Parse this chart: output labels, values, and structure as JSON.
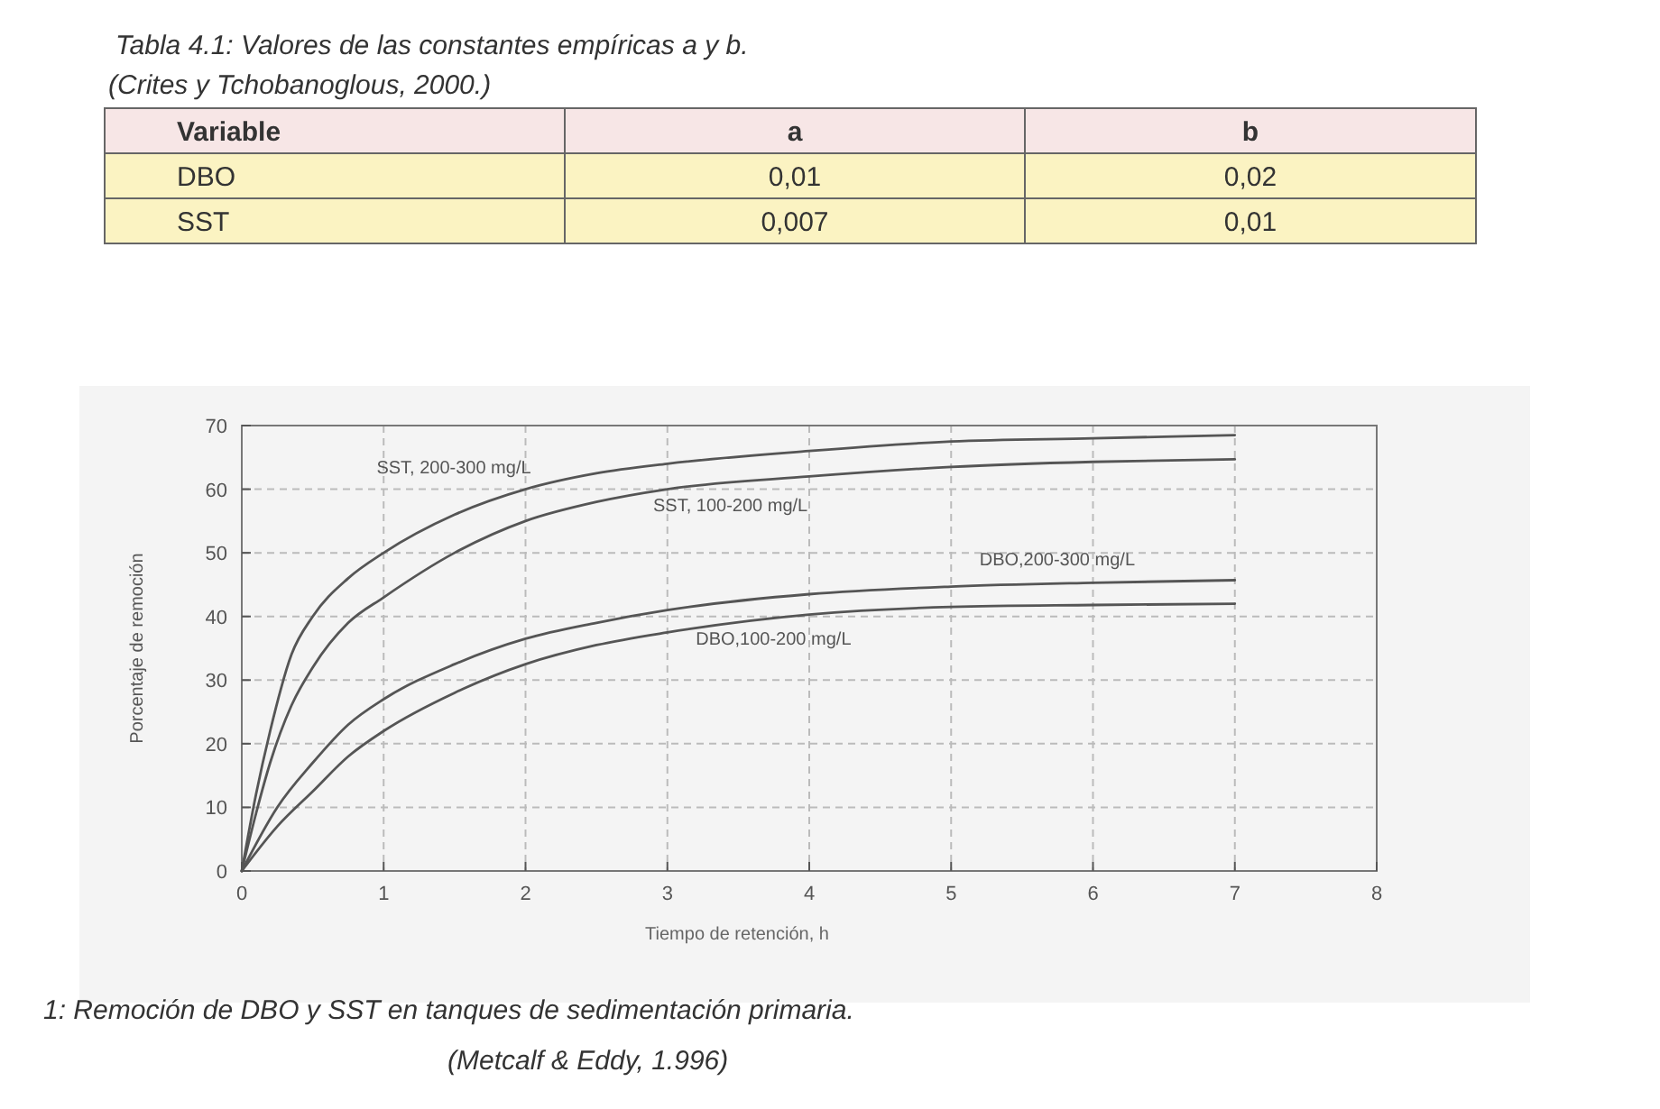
{
  "chart_data": [
    {
      "type": "other",
      "title": "Tabla 4.1: Valores de las constantes empíricas a y b.",
      "subtitle": "(Crites y Tchobanoglous, 2000.)",
      "annotations": [
        "Variable",
        "a",
        "b",
        "DBO",
        "0,01",
        "0,02",
        "SST",
        "0,007",
        "0,01"
      ]
    },
    {
      "type": "line",
      "xlabel": "Tiempo de retención, h",
      "ylabel": "Porcentaje de remoción",
      "xlim": [
        0,
        8
      ],
      "ylim": [
        0,
        70
      ],
      "xticks": [
        0,
        1,
        2,
        3,
        4,
        5,
        6,
        7,
        8
      ],
      "yticks": [
        0,
        10,
        20,
        30,
        40,
        50,
        60,
        70
      ],
      "grid": true,
      "marker": "none",
      "line_style": "solid",
      "series": [
        {
          "name": "SST, 200-300 mg/L",
          "color": "#555555",
          "x": [
            0,
            0.1,
            0.2,
            0.35,
            0.5,
            0.75,
            1,
            1.5,
            2,
            2.5,
            3,
            4,
            5,
            6,
            7
          ],
          "values": [
            0,
            12,
            22,
            34,
            40,
            46,
            50,
            56,
            60,
            62.5,
            64,
            66,
            67.5,
            68,
            68.5
          ]
        },
        {
          "name": "SST, 100-200 mg/L",
          "color": "#555555",
          "x": [
            0,
            0.1,
            0.2,
            0.35,
            0.5,
            0.75,
            1,
            1.5,
            2,
            2.5,
            3,
            4,
            5,
            6,
            7
          ],
          "values": [
            0,
            9,
            17,
            26,
            32,
            39,
            43,
            50,
            55,
            58,
            60,
            62,
            63.5,
            64.3,
            64.7
          ]
        },
        {
          "name": "DBO,200-300 mg/L",
          "color": "#555555",
          "x": [
            0,
            0.25,
            0.5,
            0.75,
            1,
            1.5,
            2,
            2.5,
            3,
            4,
            5,
            6,
            7
          ],
          "values": [
            0,
            10,
            17,
            23,
            27,
            32.5,
            36.5,
            39,
            41,
            43.5,
            44.7,
            45.3,
            45.7
          ]
        },
        {
          "name": "DBO,100-200 mg/L",
          "color": "#555555",
          "x": [
            0,
            0.25,
            0.5,
            0.75,
            1,
            1.5,
            2,
            2.5,
            3,
            4,
            5,
            6,
            7
          ],
          "values": [
            0,
            7,
            12.5,
            18,
            22,
            28,
            32.5,
            35.5,
            37.5,
            40.3,
            41.5,
            41.8,
            42
          ]
        }
      ],
      "annotations": [
        "1: Remoción de DBO y SST en tanques de sedimentación primaria.",
        "(Metcalf & Eddy, 1.996)"
      ]
    }
  ]
}
